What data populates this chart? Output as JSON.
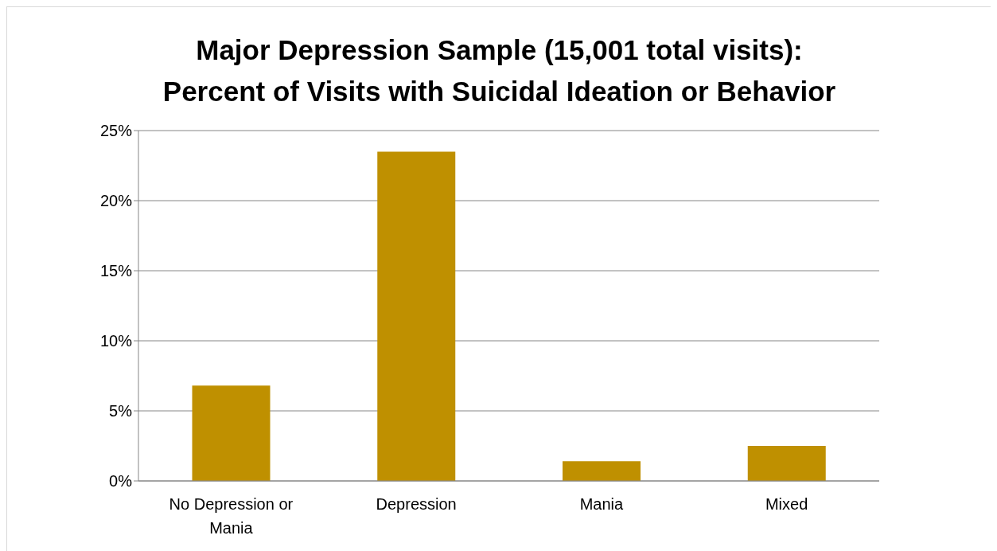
{
  "chart_data": {
    "type": "bar",
    "title": "Major Depression Sample (15,001 total visits):\nPercent of Visits with Suicidal Ideation or Behavior",
    "categories": [
      "No Depression or Mania",
      "Depression",
      "Mania",
      "Mixed"
    ],
    "values": [
      6.8,
      23.5,
      1.4,
      2.5
    ],
    "color": "#bf9000",
    "ylim": [
      0,
      25
    ],
    "yticks": [
      {
        "value": 0,
        "label": "0%"
      },
      {
        "value": 5,
        "label": "5%"
      },
      {
        "value": 10,
        "label": "10%"
      },
      {
        "value": 15,
        "label": "15%"
      },
      {
        "value": 20,
        "label": "20%"
      },
      {
        "value": 25,
        "label": "25%"
      }
    ],
    "grid": "y",
    "legend": false
  }
}
